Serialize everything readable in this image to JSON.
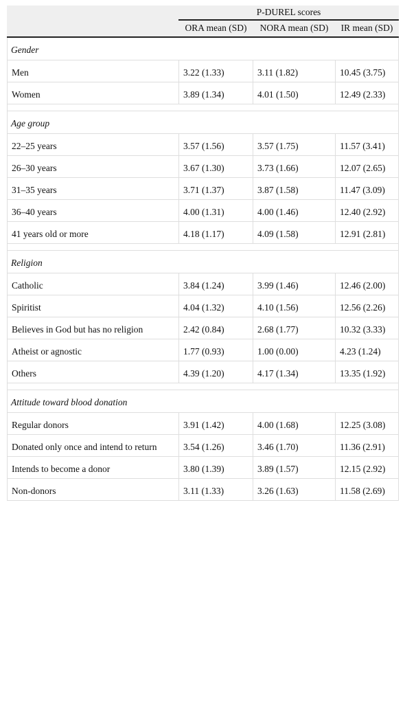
{
  "table": {
    "group_header": "P-DUREL scores",
    "columns": [
      "ORA mean (SD)",
      "NORA mean (SD)",
      "IR mean (SD)"
    ],
    "sections": [
      {
        "title": "Gender",
        "rows": [
          [
            "Men",
            "3.22 (1.33)",
            "3.11 (1.82)",
            "10.45 (3.75)"
          ],
          [
            "Women",
            "3.89 (1.34)",
            "4.01 (1.50)",
            "12.49 (2.33)"
          ]
        ]
      },
      {
        "title": "Age group",
        "rows": [
          [
            "22–25 years",
            "3.57 (1.56)",
            "3.57 (1.75)",
            "11.57 (3.41)"
          ],
          [
            "26–30 years",
            "3.67 (1.30)",
            "3.73 (1.66)",
            "12.07 (2.65)"
          ],
          [
            "31–35 years",
            "3.71 (1.37)",
            "3.87 (1.58)",
            "11.47 (3.09)"
          ],
          [
            "36–40 years",
            "4.00 (1.31)",
            "4.00 (1.46)",
            "12.40 (2.92)"
          ],
          [
            "41 years old or more",
            "4.18 (1.17)",
            "4.09 (1.58)",
            "12.91 (2.81)"
          ]
        ]
      },
      {
        "title": "Religion",
        "rows": [
          [
            "Catholic",
            "3.84 (1.24)",
            "3.99 (1.46)",
            "12.46 (2.00)"
          ],
          [
            "Spiritist",
            "4.04 (1.32)",
            "4.10 (1.56)",
            "12.56 (2.26)"
          ],
          [
            "Believes in God but has no religion",
            "2.42 (0.84)",
            "2.68 (1.77)",
            "10.32 (3.33)"
          ],
          [
            "Atheist or agnostic",
            "1.77 (0.93)",
            "1.00 (0.00)",
            "4.23 (1.24)"
          ],
          [
            "Others",
            "4.39 (1.20)",
            "4.17 (1.34)",
            "13.35 (1.92)"
          ]
        ]
      },
      {
        "title": "Attitude toward blood donation",
        "rows": [
          [
            "Regular donors",
            "3.91 (1.42)",
            "4.00 (1.68)",
            "12.25 (3.08)"
          ],
          [
            "Donated only once and intend to return",
            "3.54 (1.26)",
            "3.46 (1.70)",
            "11.36 (2.91)"
          ],
          [
            "Intends to become a donor",
            "3.80 (1.39)",
            "3.89 (1.57)",
            "12.15 (2.92)"
          ],
          [
            "Non-donors",
            "3.11 (1.33)",
            "3.26 (1.63)",
            "11.58 (2.69)"
          ]
        ]
      }
    ]
  }
}
